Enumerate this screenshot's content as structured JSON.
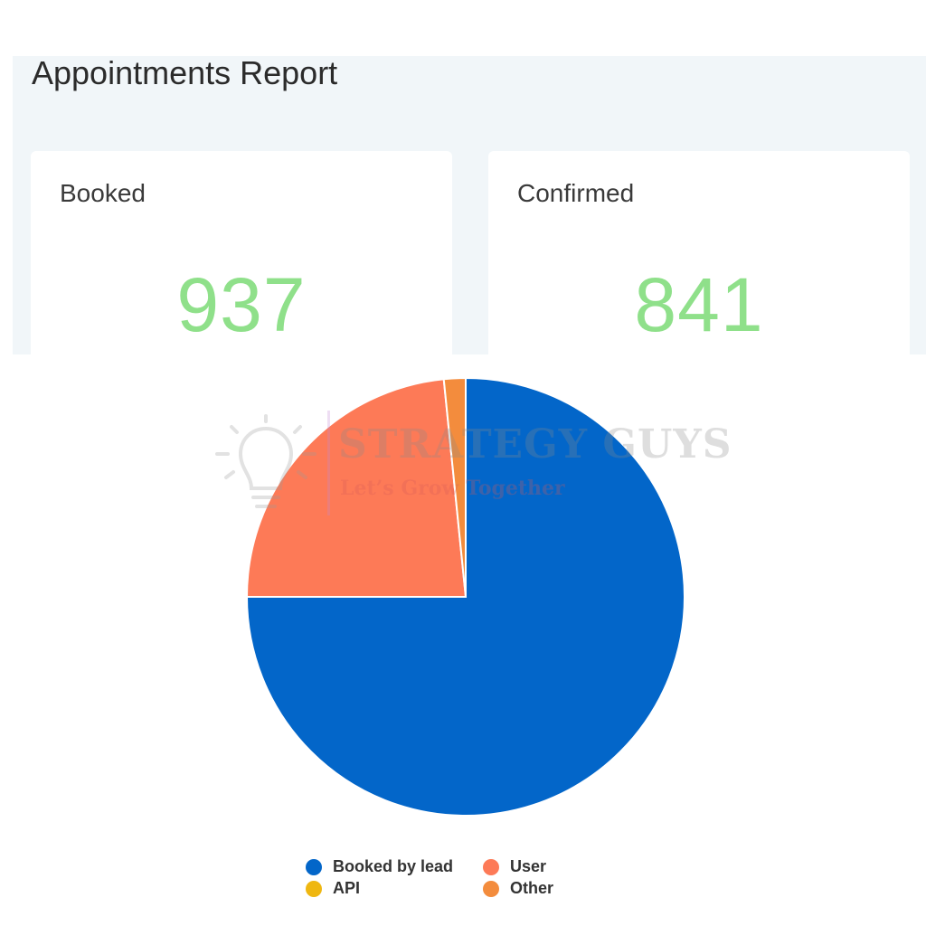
{
  "report": {
    "title": "Appointments Report"
  },
  "cards": [
    {
      "label": "Booked",
      "value": "937"
    },
    {
      "label": "Confirmed",
      "value": "841"
    }
  ],
  "watermark": {
    "name": "STRATEGY GUYS",
    "tagline": "Let’s Grow Together",
    "icon": "lightbulb-icon"
  },
  "colors": {
    "accent_value": "#8fe08a",
    "booked_by_lead": "#0366c9",
    "user": "#fd7a57",
    "api": "#efb711",
    "other": "#f38c3d"
  },
  "legend": [
    {
      "label": "Booked by lead",
      "color": "#0366c9"
    },
    {
      "label": "User",
      "color": "#fd7a57"
    },
    {
      "label": "API",
      "color": "#efb711"
    },
    {
      "label": "Other",
      "color": "#f38c3d"
    }
  ],
  "chart_data": {
    "type": "pie",
    "categories": [
      "Booked by lead",
      "User",
      "API",
      "Other"
    ],
    "values": [
      75.0,
      23.4,
      0,
      1.6
    ],
    "unit": "percent (estimated)",
    "colors": [
      "#0366c9",
      "#fd7a57",
      "#efb711",
      "#f38c3d"
    ],
    "start_angle": "12 o'clock, clockwise",
    "legend_position": "bottom"
  }
}
